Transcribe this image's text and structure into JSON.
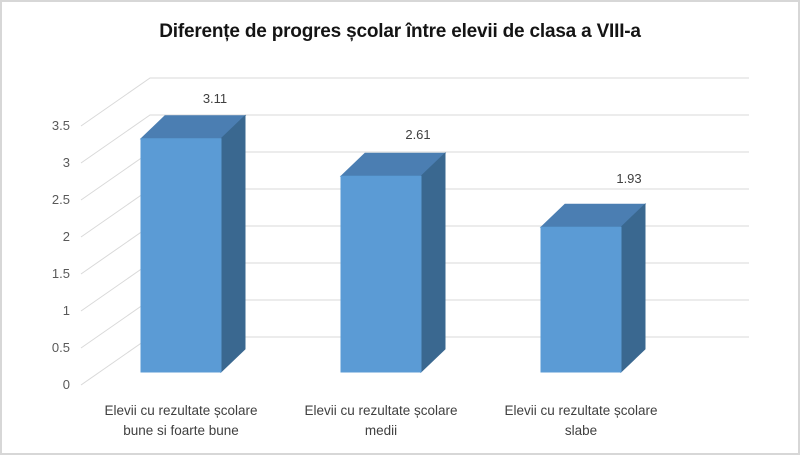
{
  "chart_data": {
    "type": "bar",
    "projection": "3d",
    "title": "Diferențe de progres școlar între elevii de clasa a VIII-a",
    "categories": [
      [
        "Elevii cu rezultate școlare",
        "bune si foarte bune"
      ],
      [
        "Elevii cu rezultate școlare",
        "medii"
      ],
      [
        "Elevii cu rezultate școlare",
        "slabe"
      ]
    ],
    "values": [
      3.11,
      2.61,
      1.93
    ],
    "data_labels": [
      "3.11",
      "2.61",
      "1.93"
    ],
    "yticks": [
      "0",
      "0.5",
      "1",
      "1.5",
      "2",
      "2.5",
      "3",
      "3.5"
    ],
    "ytick_values": [
      0,
      0.5,
      1,
      1.5,
      2,
      2.5,
      3,
      3.5
    ],
    "ylim": [
      0,
      3.5
    ],
    "xlabel": "",
    "ylabel": "",
    "grid": "horizontal-back-wall",
    "legend_position": "none",
    "colors": {
      "bar_front": "#5B9BD5",
      "bar_top": "#4B7EB2",
      "bar_side": "#3A6890",
      "gridline": "#D9D9D9",
      "tick_text": "#595959",
      "value_label_text": "#404040",
      "category_text": "#3F3F3F",
      "title_text": "#141414",
      "border": "#D7D7D7",
      "background": "#FFFFFF"
    }
  }
}
